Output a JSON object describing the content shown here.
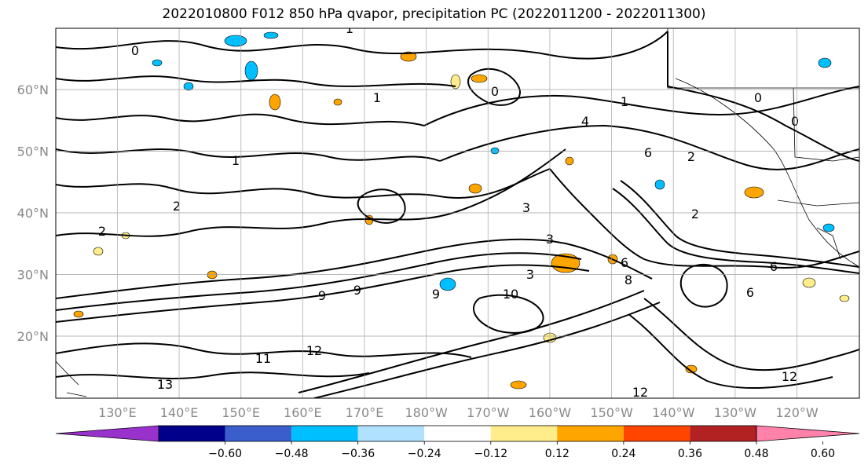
{
  "chart_data": {
    "type": "contour",
    "title": "2022010800 F012 850 hPa qvapor, precipitation PC (2022011200 - 2022011300)",
    "lon_ticks": [
      "130°E",
      "140°E",
      "150°E",
      "160°E",
      "170°E",
      "180°W",
      "170°W",
      "160°W",
      "150°W",
      "140°W",
      "130°W",
      "120°W"
    ],
    "lat_ticks": [
      "60°N",
      "50°N",
      "40°N",
      "30°N",
      "20°N"
    ],
    "contour_labels": [
      "1",
      "1",
      "1",
      "1",
      "0",
      "0",
      "0",
      "0",
      "2",
      "2",
      "2",
      "2",
      "3",
      "3",
      "3",
      "4",
      "6",
      "6",
      "6",
      "6",
      "8",
      "9",
      "9",
      "9",
      "10",
      "11",
      "12",
      "12",
      "12",
      "13"
    ],
    "colorbar": {
      "ticks": [
        "−0.60",
        "−0.48",
        "−0.36",
        "−0.24",
        "−0.12",
        "0.12",
        "0.24",
        "0.36",
        "0.48",
        "0.60"
      ],
      "colors": [
        "#9932cc",
        "#00008b",
        "#3a5fcd",
        "#00bfff",
        "#b0e2ff",
        "#ffffff",
        "#ffec8b",
        "#ffa500",
        "#ff4500",
        "#b22222",
        "#ff82ab"
      ],
      "extend": "both"
    },
    "grid": true
  }
}
